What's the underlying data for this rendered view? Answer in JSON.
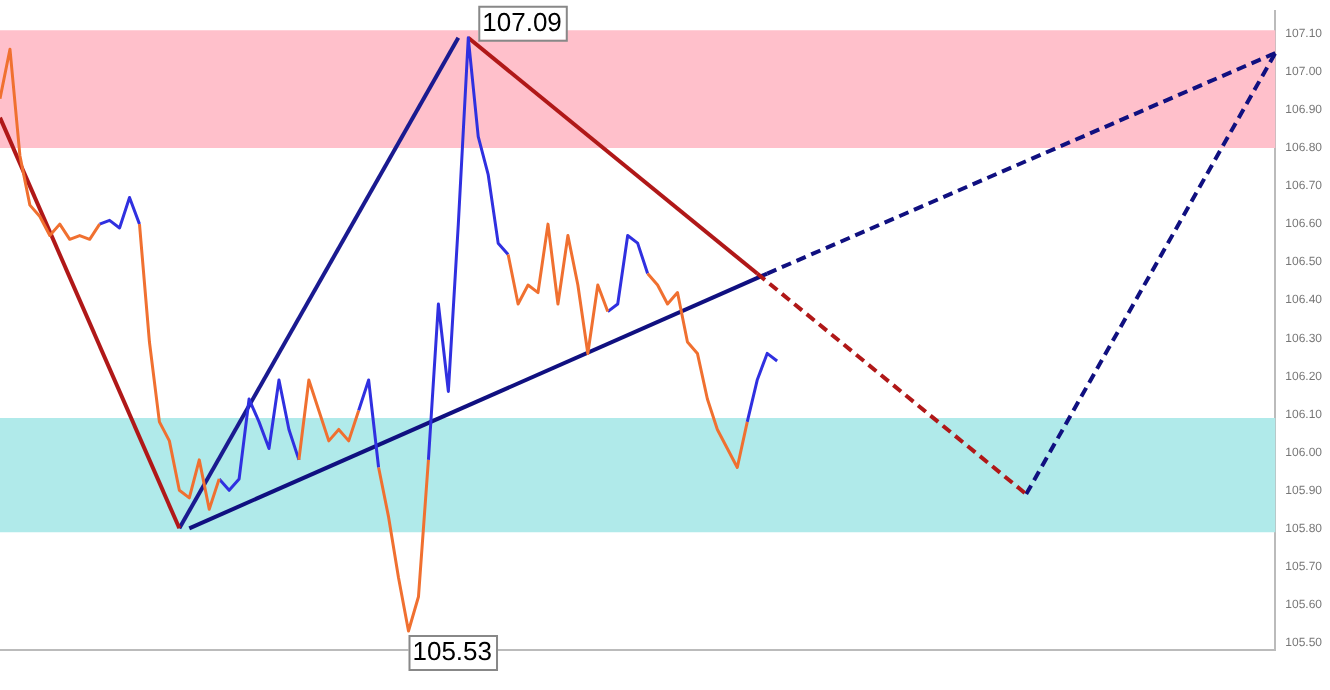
{
  "chart_data": {
    "type": "line",
    "categories": [
      null,
      null,
      null,
      null,
      null,
      null,
      null,
      null,
      null,
      null,
      null,
      null,
      null,
      null,
      null,
      null,
      null,
      null,
      null,
      null,
      null,
      null,
      null,
      null,
      null,
      null,
      null,
      null,
      null,
      null,
      null,
      null,
      null,
      null,
      null,
      null,
      null,
      null,
      null,
      null,
      null,
      null,
      null,
      null,
      null,
      null,
      null,
      null,
      null,
      null,
      null,
      null,
      null,
      null,
      null,
      null,
      null,
      null,
      null,
      null,
      null,
      null,
      null,
      null,
      null,
      null,
      null,
      null,
      null,
      null,
      null,
      null,
      null,
      null,
      null,
      null,
      null,
      null,
      null,
      null,
      null,
      null,
      null,
      null,
      null,
      null,
      null,
      null,
      null,
      null,
      null,
      null,
      null,
      null,
      null,
      null,
      null,
      null,
      null,
      null,
      null,
      null,
      null,
      null,
      null,
      null,
      null,
      null,
      null,
      null,
      null,
      null,
      null,
      null,
      null,
      null,
      null,
      null,
      null,
      null,
      null,
      null,
      null,
      null,
      null,
      null,
      null,
      null,
      null
    ],
    "series": [
      {
        "color": "#f07030",
        "values": [
          106.93,
          107.06,
          106.78,
          106.65,
          106.62,
          106.57,
          106.6,
          106.56,
          106.57,
          106.56,
          106.6,
          null,
          null,
          null,
          106.6,
          106.29,
          106.08,
          106.03,
          105.9,
          105.88,
          105.98,
          105.85,
          105.93,
          null,
          null,
          null,
          null,
          null,
          null,
          null,
          105.98,
          106.19,
          106.11,
          106.03,
          106.06,
          106.03,
          106.11,
          null,
          105.96,
          105.83,
          105.67,
          105.53,
          105.62,
          105.98,
          null,
          null,
          null,
          null,
          null,
          null,
          null,
          106.52,
          106.39,
          106.44,
          106.42,
          106.6,
          106.39,
          106.57,
          106.44,
          106.26,
          106.44,
          106.37,
          null,
          null,
          null,
          106.47,
          106.44,
          106.39,
          106.42,
          106.29,
          106.26,
          106.14,
          106.06,
          106.01,
          105.96,
          106.08,
          null,
          null,
          null,
          null,
          null,
          null,
          null,
          null,
          null,
          null,
          null,
          null,
          null,
          null,
          null,
          null,
          null,
          null,
          null,
          null,
          null,
          null,
          null,
          null,
          null,
          null,
          null,
          null,
          null,
          null,
          null,
          null,
          null,
          null,
          null,
          null,
          null,
          null,
          null,
          null,
          null,
          null,
          null,
          null,
          null,
          null,
          null,
          null,
          null,
          null,
          null,
          null,
          null
        ],
        "value_labels": [
          null,
          null,
          null,
          null,
          null,
          null,
          null,
          null,
          null,
          null,
          null,
          null,
          null,
          null,
          null,
          null,
          null,
          null,
          null,
          null,
          null,
          null,
          null,
          null,
          null,
          null,
          null,
          null,
          null,
          null,
          null,
          null,
          null,
          null,
          null,
          null,
          null,
          null,
          null,
          null,
          null,
          "105.53",
          null,
          null,
          null,
          null,
          null,
          null,
          null,
          null,
          null,
          null,
          null,
          null,
          null,
          null,
          null,
          null,
          null,
          null,
          null,
          null,
          null,
          null,
          null,
          null,
          null,
          null,
          null,
          null,
          null,
          null,
          null,
          null,
          null,
          null,
          null,
          null,
          null,
          null,
          null,
          null,
          null,
          null,
          null,
          null,
          null,
          null,
          null,
          null,
          null,
          null,
          null,
          null,
          null,
          null,
          null,
          null,
          null,
          null,
          null,
          null,
          null,
          null,
          null,
          null,
          null,
          null,
          null,
          null,
          null,
          null,
          null,
          null,
          null,
          null,
          null,
          null,
          null,
          null,
          null,
          null,
          null,
          null,
          null,
          null,
          null,
          null,
          null
        ]
      },
      {
        "color": "#3030e0",
        "values": [
          null,
          null,
          null,
          null,
          null,
          null,
          null,
          null,
          null,
          null,
          106.6,
          106.61,
          106.59,
          106.67,
          106.6,
          null,
          null,
          null,
          null,
          null,
          null,
          null,
          105.93,
          105.9,
          105.93,
          106.14,
          106.08,
          106.01,
          106.19,
          106.06,
          105.98,
          null,
          null,
          null,
          null,
          null,
          106.11,
          106.19,
          105.96,
          null,
          null,
          null,
          null,
          105.98,
          106.39,
          106.16,
          106.6,
          107.09,
          106.83,
          106.73,
          106.55,
          106.52,
          null,
          null,
          null,
          null,
          null,
          null,
          null,
          null,
          null,
          106.37,
          106.39,
          106.57,
          106.55,
          106.47,
          null,
          null,
          null,
          null,
          null,
          null,
          null,
          null,
          null,
          106.08,
          106.19,
          106.26,
          106.24,
          null,
          null,
          null,
          null,
          null,
          null,
          null,
          null,
          null,
          null,
          null,
          null,
          null,
          null,
          null,
          null,
          null,
          null,
          null,
          null,
          null,
          null,
          null,
          null,
          null,
          null,
          null,
          null,
          null,
          null,
          null,
          null,
          null,
          null,
          null,
          null,
          null,
          null,
          null,
          null,
          null,
          null,
          null,
          null,
          null,
          null,
          null,
          null,
          null,
          null
        ],
        "value_labels": [
          null,
          null,
          null,
          null,
          null,
          null,
          null,
          null,
          null,
          null,
          null,
          null,
          null,
          null,
          null,
          null,
          null,
          null,
          null,
          null,
          null,
          null,
          null,
          null,
          null,
          null,
          null,
          null,
          null,
          null,
          null,
          null,
          null,
          null,
          null,
          null,
          null,
          null,
          null,
          null,
          null,
          null,
          null,
          null,
          null,
          null,
          null,
          "107.09",
          null,
          null,
          null,
          null,
          null,
          null,
          null,
          null,
          null,
          null,
          null,
          null,
          null,
          null,
          null,
          null,
          null,
          null,
          null,
          null,
          null,
          null,
          null,
          null,
          null,
          null,
          null,
          null,
          null,
          null,
          null,
          null,
          null,
          null,
          null,
          null,
          null,
          null,
          null,
          null,
          null,
          null,
          null,
          null,
          null,
          null,
          null,
          null,
          null,
          null,
          null,
          null,
          null,
          null,
          null,
          null,
          null,
          null,
          null,
          null,
          null,
          null,
          null,
          null,
          null,
          null,
          null,
          null,
          null,
          null,
          null,
          null,
          null,
          null,
          null,
          null,
          null,
          null,
          null,
          null,
          null
        ]
      },
      {
        "color": "#b01818",
        "line_style": "solid",
        "values": [
          106.88,
          null,
          null,
          null,
          null,
          null,
          null,
          null,
          null,
          null,
          null,
          null,
          null,
          null,
          null,
          null,
          null,
          null,
          105.8,
          null,
          null,
          null,
          null,
          null,
          null,
          null,
          null,
          null,
          null,
          null,
          null,
          null,
          null,
          null,
          null,
          null,
          null,
          null,
          null,
          null,
          null,
          null,
          null,
          null,
          null,
          null,
          null,
          null,
          null,
          null,
          null,
          null,
          null,
          null,
          null,
          null,
          null,
          null,
          null,
          null,
          null,
          null,
          null,
          null,
          null,
          null,
          null,
          null,
          null,
          null,
          null,
          null,
          null,
          null,
          null,
          null,
          null,
          null,
          null,
          null,
          null,
          null,
          null,
          null,
          null,
          null,
          null,
          null,
          null,
          null,
          null,
          null,
          null,
          null,
          null,
          null,
          null,
          null,
          null,
          null,
          null,
          null,
          null,
          null,
          null,
          null,
          null,
          null,
          null,
          null,
          null,
          null,
          null,
          null,
          null,
          null,
          null,
          null,
          null,
          null,
          null,
          null,
          null,
          null,
          null,
          null,
          null,
          null,
          null
        ]
      },
      {
        "color": "#1a1a90",
        "line_style": "solid",
        "values": [
          null,
          null,
          null,
          null,
          null,
          null,
          null,
          null,
          null,
          null,
          null,
          null,
          null,
          null,
          null,
          null,
          null,
          null,
          105.8,
          null,
          null,
          null,
          null,
          null,
          null,
          null,
          null,
          null,
          null,
          null,
          null,
          null,
          null,
          null,
          null,
          null,
          null,
          null,
          null,
          null,
          null,
          null,
          null,
          null,
          null,
          null,
          107.09,
          null,
          null,
          null,
          null,
          null,
          null,
          null,
          null,
          null,
          null,
          null,
          null,
          null,
          null,
          null,
          null,
          null,
          null,
          null,
          null,
          null,
          null,
          null,
          null,
          null,
          null,
          null,
          null,
          null,
          null,
          null,
          null,
          null,
          null,
          null,
          null,
          null,
          null,
          null,
          null,
          null,
          null,
          null,
          null,
          null,
          null,
          null,
          null,
          null,
          null,
          null,
          null,
          null,
          null,
          null,
          null,
          null,
          null,
          null,
          null,
          null,
          null,
          null,
          null,
          null,
          null,
          null,
          null,
          null,
          null,
          null,
          null,
          null,
          null,
          null,
          null,
          null,
          null,
          null,
          null,
          null,
          null
        ]
      },
      {
        "color": "#b01818",
        "line_style": "solid",
        "values": [
          null,
          null,
          null,
          null,
          null,
          null,
          null,
          null,
          null,
          null,
          null,
          null,
          null,
          null,
          null,
          null,
          null,
          null,
          null,
          null,
          null,
          null,
          null,
          null,
          null,
          null,
          null,
          null,
          null,
          null,
          null,
          null,
          null,
          null,
          null,
          null,
          null,
          null,
          null,
          null,
          null,
          null,
          null,
          null,
          null,
          null,
          null,
          107.09,
          null,
          null,
          null,
          null,
          null,
          null,
          null,
          null,
          null,
          null,
          null,
          null,
          null,
          null,
          null,
          null,
          null,
          null,
          null,
          null,
          null,
          null,
          null,
          null,
          null,
          null,
          null,
          null,
          106.47,
          null,
          null,
          null,
          null,
          null,
          null,
          null,
          null,
          null,
          null,
          null,
          null,
          null,
          null,
          null,
          null,
          null,
          null,
          null,
          null,
          null,
          null,
          null,
          null,
          null,
          null,
          null,
          null,
          null,
          null,
          null,
          null,
          null,
          null,
          null,
          null,
          null,
          null,
          null,
          null,
          null,
          null,
          null,
          null,
          null,
          null,
          null,
          null,
          null,
          null,
          null,
          null
        ]
      },
      {
        "color": "#b01818",
        "line_style": "dashed",
        "values": [
          null,
          null,
          null,
          null,
          null,
          null,
          null,
          null,
          null,
          null,
          null,
          null,
          null,
          null,
          null,
          null,
          null,
          null,
          null,
          null,
          null,
          null,
          null,
          null,
          null,
          null,
          null,
          null,
          null,
          null,
          null,
          null,
          null,
          null,
          null,
          null,
          null,
          null,
          null,
          null,
          null,
          null,
          null,
          null,
          null,
          null,
          null,
          null,
          null,
          null,
          null,
          null,
          null,
          null,
          null,
          null,
          null,
          null,
          null,
          null,
          null,
          null,
          null,
          null,
          null,
          null,
          null,
          null,
          null,
          null,
          null,
          null,
          null,
          null,
          null,
          null,
          106.47,
          null,
          null,
          null,
          null,
          null,
          null,
          null,
          null,
          null,
          null,
          null,
          null,
          null,
          null,
          null,
          null,
          null,
          null,
          null,
          null,
          null,
          null,
          null,
          null,
          null,
          null,
          105.89,
          null,
          null,
          null,
          null,
          null,
          null,
          null,
          null,
          null,
          null,
          null,
          null,
          null,
          null,
          null,
          null,
          null,
          null,
          null,
          null,
          null,
          null,
          null,
          null,
          null
        ]
      },
      {
        "color": "#101080",
        "line_style": "solid",
        "values": [
          null,
          null,
          null,
          null,
          null,
          null,
          null,
          null,
          null,
          null,
          null,
          null,
          null,
          null,
          null,
          null,
          null,
          null,
          null,
          105.8,
          null,
          null,
          null,
          null,
          null,
          null,
          null,
          null,
          null,
          null,
          null,
          null,
          null,
          null,
          null,
          null,
          null,
          null,
          null,
          null,
          null,
          null,
          null,
          null,
          null,
          null,
          null,
          null,
          null,
          null,
          null,
          null,
          null,
          null,
          null,
          null,
          null,
          null,
          null,
          null,
          null,
          null,
          null,
          null,
          null,
          null,
          null,
          null,
          null,
          null,
          null,
          null,
          null,
          null,
          null,
          null,
          null,
          106.47,
          null,
          null,
          null,
          null,
          null,
          null,
          null,
          null,
          null,
          null,
          null,
          null,
          null,
          null,
          null,
          null,
          null,
          null,
          null,
          null,
          null,
          null,
          null,
          null,
          null,
          null,
          null,
          null,
          null,
          null,
          null,
          null,
          null,
          null,
          null,
          null,
          null,
          null,
          null,
          null,
          null,
          null,
          null,
          null,
          null,
          null,
          null,
          null,
          null,
          null,
          null
        ]
      },
      {
        "color": "#101080",
        "line_style": "dashed",
        "values": [
          null,
          null,
          null,
          null,
          null,
          null,
          null,
          null,
          null,
          null,
          null,
          null,
          null,
          null,
          null,
          null,
          null,
          null,
          null,
          null,
          null,
          null,
          null,
          null,
          null,
          null,
          null,
          null,
          null,
          null,
          null,
          null,
          null,
          null,
          null,
          null,
          null,
          null,
          null,
          null,
          null,
          null,
          null,
          null,
          null,
          null,
          null,
          null,
          null,
          null,
          null,
          null,
          null,
          null,
          null,
          null,
          null,
          null,
          null,
          null,
          null,
          null,
          null,
          null,
          null,
          null,
          null,
          null,
          null,
          null,
          null,
          null,
          null,
          null,
          null,
          null,
          null,
          106.47,
          null,
          null,
          null,
          null,
          null,
          null,
          null,
          null,
          null,
          null,
          null,
          null,
          null,
          null,
          null,
          null,
          null,
          null,
          null,
          null,
          null,
          null,
          null,
          null,
          null,
          null,
          null,
          null,
          null,
          null,
          null,
          null,
          null,
          null,
          null,
          null,
          null,
          null,
          null,
          null,
          null,
          null,
          null,
          null,
          null,
          null,
          null,
          null,
          null,
          null,
          107.05
        ]
      },
      {
        "color": "#101080",
        "line_style": "dashed",
        "values": [
          null,
          null,
          null,
          null,
          null,
          null,
          null,
          null,
          null,
          null,
          null,
          null,
          null,
          null,
          null,
          null,
          null,
          null,
          null,
          null,
          null,
          null,
          null,
          null,
          null,
          null,
          null,
          null,
          null,
          null,
          null,
          null,
          null,
          null,
          null,
          null,
          null,
          null,
          null,
          null,
          null,
          null,
          null,
          null,
          null,
          null,
          null,
          null,
          null,
          null,
          null,
          null,
          null,
          null,
          null,
          null,
          null,
          null,
          null,
          null,
          null,
          null,
          null,
          null,
          null,
          null,
          null,
          null,
          null,
          null,
          null,
          null,
          null,
          null,
          null,
          null,
          null,
          null,
          null,
          null,
          null,
          null,
          null,
          null,
          null,
          null,
          null,
          null,
          null,
          null,
          null,
          null,
          null,
          null,
          null,
          null,
          null,
          null,
          null,
          null,
          null,
          null,
          null,
          105.89,
          null,
          null,
          null,
          null,
          null,
          null,
          null,
          null,
          null,
          null,
          null,
          null,
          null,
          null,
          null,
          null,
          null,
          null,
          null,
          null,
          null,
          null,
          null,
          null,
          107.05
        ]
      }
    ],
    "ylim": [
      105.48,
      107.16
    ],
    "yticks": [
      {
        "value": 105.5,
        "label": "105.50"
      },
      {
        "value": 105.6,
        "label": "105.60"
      },
      {
        "value": 105.7,
        "label": "105.70"
      },
      {
        "value": 105.8,
        "label": "105.80"
      },
      {
        "value": 105.9,
        "label": "105.90"
      },
      {
        "value": 106.0,
        "label": "106.00"
      },
      {
        "value": 106.1,
        "label": "106.10"
      },
      {
        "value": 106.2,
        "label": "106.20"
      },
      {
        "value": 106.3,
        "label": "106.30"
      },
      {
        "value": 106.4,
        "label": "106.40"
      },
      {
        "value": 106.5,
        "label": "106.50"
      },
      {
        "value": 106.6,
        "label": "106.60"
      },
      {
        "value": 106.7,
        "label": "106.70"
      },
      {
        "value": 106.8,
        "label": "106.80"
      },
      {
        "value": 106.9,
        "label": "106.90"
      },
      {
        "value": 107.0,
        "label": "107.00"
      },
      {
        "value": 107.1,
        "label": "107.10"
      }
    ],
    "bands": [
      {
        "axis": "y",
        "from": 106.8,
        "to": 107.11,
        "color": "#ffc0cb"
      },
      {
        "axis": "y",
        "from": 105.79,
        "to": 106.09,
        "color": "#b0eaea"
      }
    ],
    "tick_labels": "y",
    "grid": false,
    "legend": false,
    "marker": "none"
  }
}
